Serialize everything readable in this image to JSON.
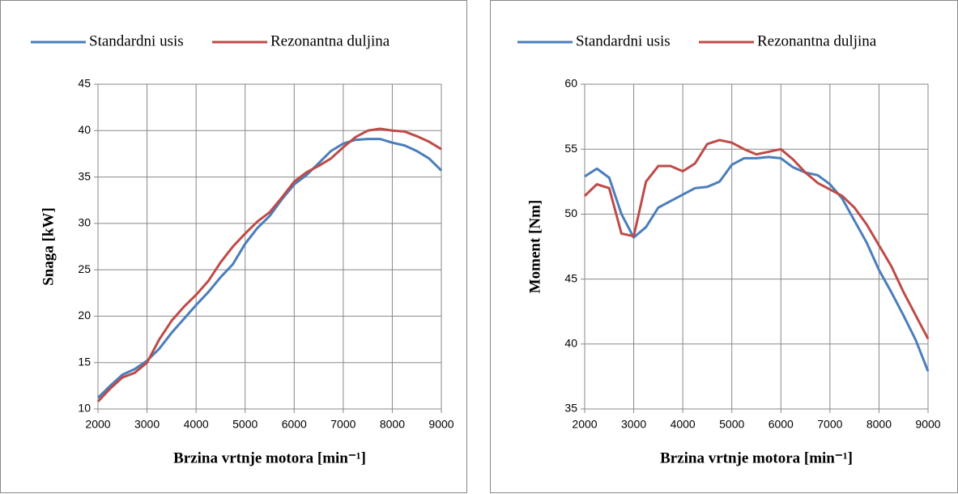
{
  "chart_data": [
    {
      "type": "line",
      "x_label": "Brzina vrtnje motora [min⁻¹]",
      "y_label": "Snaga [kW]",
      "x": [
        2000,
        2250,
        2500,
        2750,
        3000,
        3250,
        3500,
        3750,
        4000,
        4250,
        4500,
        4750,
        5000,
        5250,
        5500,
        5750,
        6000,
        6250,
        6500,
        6750,
        7000,
        7250,
        7500,
        7750,
        8000,
        8250,
        8500,
        8750,
        9000
      ],
      "series": [
        {
          "name": "Standardni usis",
          "color": "#4a7ebb",
          "values": [
            11.2,
            12.5,
            13.7,
            14.3,
            15.2,
            16.5,
            18.2,
            19.7,
            21.2,
            22.6,
            24.2,
            25.6,
            27.8,
            29.5,
            30.8,
            32.6,
            34.2,
            35.2,
            36.5,
            37.8,
            38.6,
            39.0,
            39.1,
            39.1,
            38.7,
            38.4,
            37.8,
            37.0,
            35.7
          ]
        },
        {
          "name": "Rezonantna duljina",
          "color": "#be4b48",
          "values": [
            10.8,
            12.2,
            13.4,
            13.9,
            15.0,
            17.5,
            19.5,
            21.0,
            22.3,
            23.8,
            25.8,
            27.5,
            28.9,
            30.2,
            31.2,
            32.8,
            34.5,
            35.5,
            36.2,
            37.0,
            38.2,
            39.3,
            40.0,
            40.2,
            40.0,
            39.9,
            39.4,
            38.8,
            38.0
          ]
        }
      ],
      "xlim": [
        2000,
        9000
      ],
      "xticks": [
        2000,
        3000,
        4000,
        5000,
        6000,
        7000,
        8000,
        9000
      ],
      "ylim": [
        10,
        45
      ],
      "yticks": [
        10,
        15,
        20,
        25,
        30,
        35,
        40,
        45
      ],
      "grid": true,
      "legend": "top"
    },
    {
      "type": "line",
      "x_label": "Brzina vrtnje motora [min⁻¹]",
      "y_label": "Moment [Nm]",
      "x": [
        2000,
        2250,
        2500,
        2750,
        3000,
        3250,
        3500,
        3750,
        4000,
        4250,
        4500,
        4750,
        5000,
        5250,
        5500,
        5750,
        6000,
        6250,
        6500,
        6750,
        7000,
        7250,
        7500,
        7750,
        8000,
        8250,
        8500,
        8750,
        9000
      ],
      "series": [
        {
          "name": "Standardni usis",
          "color": "#4a7ebb",
          "values": [
            52.9,
            53.5,
            52.8,
            50.0,
            48.2,
            49.0,
            50.5,
            51.0,
            51.5,
            52.0,
            52.1,
            52.5,
            53.8,
            54.3,
            54.3,
            54.4,
            54.3,
            53.6,
            53.2,
            53.0,
            52.3,
            51.2,
            49.5,
            47.8,
            45.7,
            44.0,
            42.2,
            40.3,
            37.9
          ]
        },
        {
          "name": "Rezonantna duljina",
          "color": "#be4b48",
          "values": [
            51.4,
            52.3,
            52.0,
            48.5,
            48.3,
            52.5,
            53.7,
            53.7,
            53.3,
            53.9,
            55.4,
            55.7,
            55.5,
            55.0,
            54.6,
            54.8,
            55.0,
            54.2,
            53.2,
            52.4,
            51.9,
            51.4,
            50.5,
            49.2,
            47.6,
            46.0,
            44.0,
            42.2,
            40.4
          ]
        }
      ],
      "xlim": [
        2000,
        9000
      ],
      "xticks": [
        2000,
        3000,
        4000,
        5000,
        6000,
        7000,
        8000,
        9000
      ],
      "ylim": [
        35,
        60
      ],
      "yticks": [
        35,
        40,
        45,
        50,
        55,
        60
      ],
      "grid": true,
      "legend": "top"
    }
  ]
}
